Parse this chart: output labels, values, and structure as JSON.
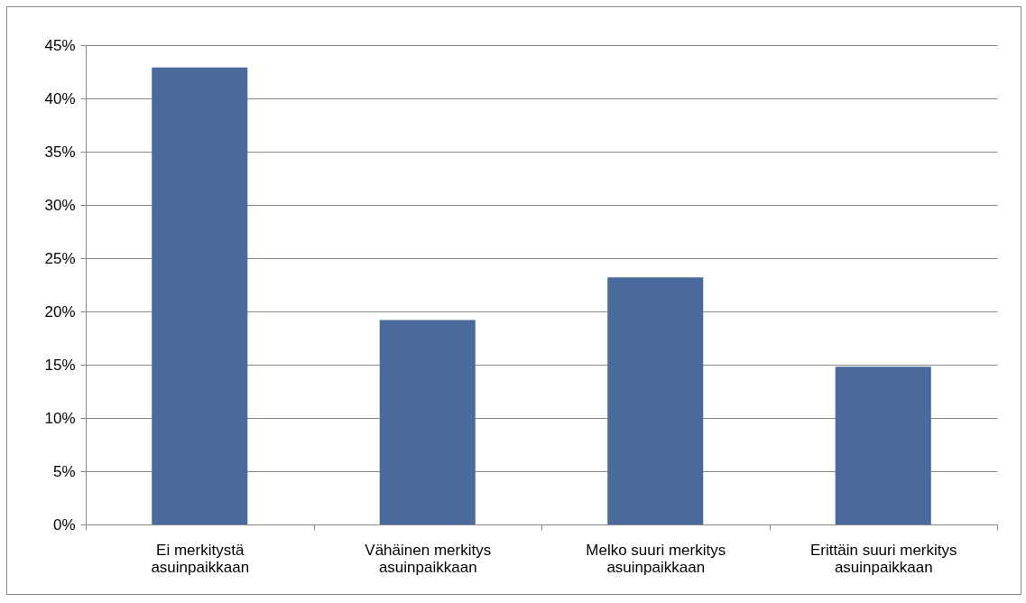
{
  "chart_data": {
    "type": "bar",
    "categories": [
      "Ei merkitystä asuinpaikkaan",
      "Vähäinen merkitys asuinpaikkaan",
      "Melko suuri merkitys asuinpaikkaan",
      "Erittäin suuri merkitys asuinpaikkaan"
    ],
    "values": [
      42.9,
      19.2,
      23.2,
      14.8
    ],
    "color": "#4a6a9c",
    "ylim": [
      0,
      45
    ],
    "yticks": [
      {
        "value": 0,
        "label": "0%"
      },
      {
        "value": 5,
        "label": "5%"
      },
      {
        "value": 10,
        "label": "10%"
      },
      {
        "value": 15,
        "label": "15%"
      },
      {
        "value": 20,
        "label": "20%"
      },
      {
        "value": 25,
        "label": "25%"
      },
      {
        "value": 30,
        "label": "30%"
      },
      {
        "value": 35,
        "label": "35%"
      },
      {
        "value": 40,
        "label": "40%"
      },
      {
        "value": 45,
        "label": "45%"
      }
    ],
    "grid": "y"
  }
}
